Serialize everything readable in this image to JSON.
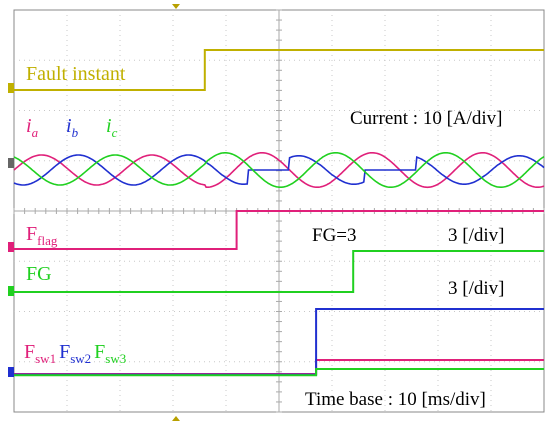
{
  "chart_data": {
    "type": "line",
    "panels": [
      {
        "name": "fault",
        "label": "Fault instant",
        "color": "#c0b000",
        "channel_marker": "C1",
        "x": [
          0,
          36,
          36,
          100
        ],
        "y": [
          0,
          0,
          1,
          1
        ]
      },
      {
        "name": "current",
        "scale_text": "Current : 10 [A/div]",
        "series": [
          {
            "name": "ia",
            "label_main": "i",
            "label_sub": "a",
            "color": "#e0207a"
          },
          {
            "name": "ib",
            "label_main": "i",
            "label_sub": "b",
            "color": "#2030d0"
          },
          {
            "name": "ic",
            "label_main": "i",
            "label_sub": "c",
            "color": "#20d020"
          }
        ],
        "channel_marker": "C2"
      },
      {
        "name": "fflag",
        "label_main": "F",
        "label_sub": "flag",
        "color": "#e0207a",
        "scale_text": "3 [/div]",
        "channel_marker": "C3",
        "x": [
          0,
          42,
          42,
          100
        ],
        "y": [
          0,
          0,
          1,
          1
        ]
      },
      {
        "name": "fg",
        "label": "FG",
        "color": "#20d020",
        "scale_text": "3 [/div]",
        "annotation": "FG=3",
        "channel_marker": "C4",
        "x": [
          0,
          64,
          64,
          100
        ],
        "y": [
          0,
          0,
          1,
          1
        ]
      },
      {
        "name": "fsw",
        "channel_marker": "C5",
        "series": [
          {
            "name": "fsw1",
            "label_main": "F",
            "label_sub": "sw1",
            "color": "#e0207a"
          },
          {
            "name": "fsw2",
            "label_main": "F",
            "label_sub": "sw2",
            "color": "#2030d0"
          },
          {
            "name": "fsw3",
            "label_main": "F",
            "label_sub": "sw3",
            "color": "#20d020"
          }
        ]
      }
    ],
    "time_base": "Time base : 10 [ms/div]",
    "x_divisions": 10,
    "y_divisions": 8,
    "grid": true
  }
}
